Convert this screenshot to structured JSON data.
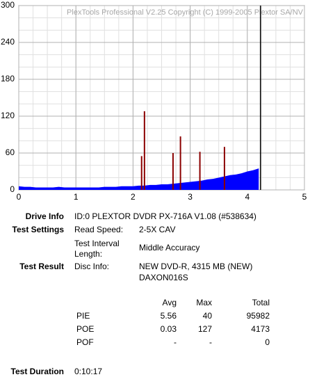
{
  "chart_data": {
    "type": "area",
    "watermark": "PlexTools Professional V2.25 Copyright (C) 1999-2005 Plextor SA/NV",
    "xlim": [
      0,
      5
    ],
    "xticks": [
      0,
      1,
      2,
      3,
      4,
      5
    ],
    "ylim": [
      0,
      300
    ],
    "yticks": [
      0,
      60,
      120,
      180,
      240,
      300
    ],
    "grid": true,
    "x_minor_step": 0.25,
    "y_minor_step": 20,
    "end_line_x": 4.23,
    "series": [
      {
        "color": "#0000ff",
        "x": [
          0,
          0.1,
          0.2,
          0.3,
          0.4,
          0.5,
          0.6,
          0.7,
          0.8,
          0.9,
          1.0,
          1.1,
          1.2,
          1.3,
          1.4,
          1.5,
          1.6,
          1.7,
          1.8,
          1.9,
          2.0,
          2.1,
          2.2,
          2.3,
          2.4,
          2.5,
          2.6,
          2.7,
          2.8,
          2.9,
          3.0,
          3.1,
          3.2,
          3.3,
          3.4,
          3.5,
          3.6,
          3.7,
          3.8,
          3.9,
          4.0,
          4.1,
          4.2
        ],
        "values": [
          6,
          5,
          5,
          4,
          4,
          4,
          4,
          5,
          4,
          4,
          4,
          4,
          4,
          4,
          4,
          5,
          5,
          5,
          6,
          6,
          6,
          7,
          7,
          8,
          8,
          9,
          9,
          10,
          11,
          12,
          13,
          14,
          15,
          17,
          18,
          20,
          22,
          24,
          25,
          27,
          30,
          32,
          35
        ]
      },
      {
        "color": "#8b0000",
        "x": [
          2.15,
          2.2,
          2.7,
          2.83,
          3.17,
          3.6
        ],
        "values": [
          55,
          128,
          60,
          87,
          62,
          70
        ]
      }
    ]
  },
  "info": {
    "drive_info": {
      "label": "Drive Info",
      "value": "ID:0 PLEXTOR DVDR PX-716A V1.08 (#538634)"
    },
    "test_settings": {
      "label": "Test Settings",
      "read_speed": [
        "Read Speed:",
        "2-5X CAV"
      ],
      "interval": [
        "Test Interval",
        "Length:",
        "Middle Accuracy"
      ]
    },
    "test_result": {
      "label": "Test Result",
      "disc_info": [
        "Disc Info:",
        "NEW DVD-R, 4315 MB (NEW)",
        "DAXON016S"
      ]
    },
    "stats": {
      "header": [
        "Avg",
        "Max",
        "Total"
      ],
      "rows": [
        [
          "PIE",
          "5.56",
          "40",
          "95982"
        ],
        [
          "POE",
          "0.03",
          "127",
          "4173"
        ],
        [
          "POF",
          "-",
          "-",
          "0"
        ]
      ]
    },
    "test_duration": {
      "label": "Test Duration",
      "value": "0:10:17"
    }
  }
}
